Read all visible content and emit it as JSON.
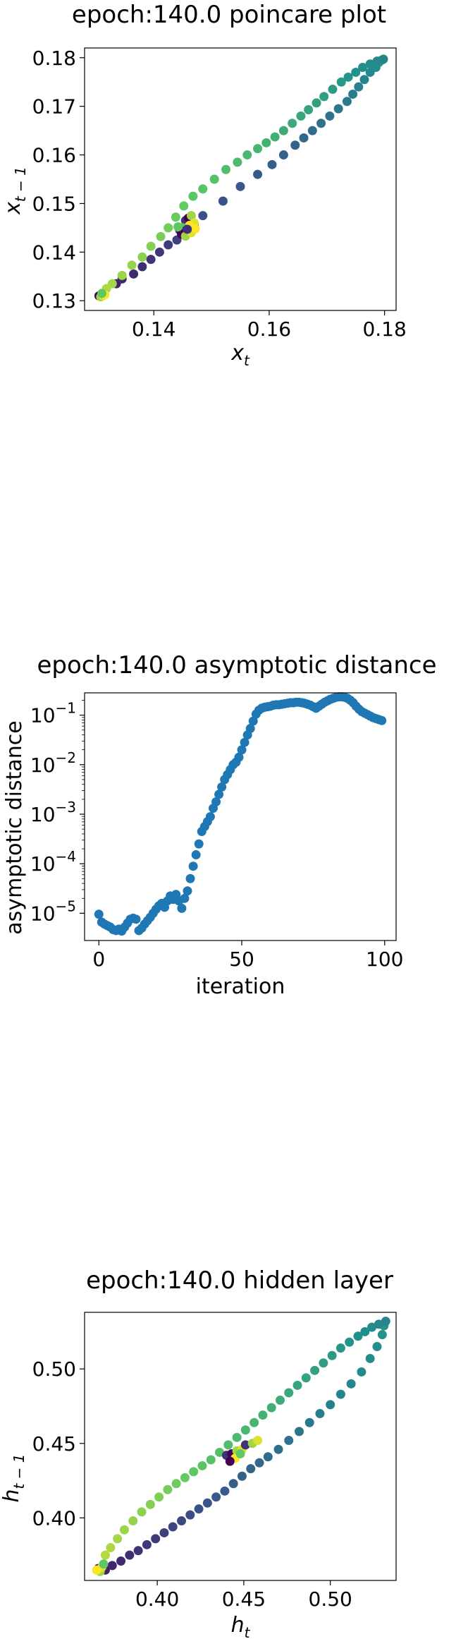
{
  "colors": {
    "scatter_blue": "#1f77b4",
    "frame": "#000000"
  },
  "chart_data": [
    {
      "type": "scatter",
      "title": "epoch:140.0 poincare plot",
      "xlabel": "x_t",
      "ylabel": "x_{t-1}",
      "xlim": [
        0.128,
        0.182
      ],
      "ylim": [
        0.128,
        0.182
      ],
      "xticks": [
        0.14,
        0.16,
        0.18
      ],
      "xtick_labels": [
        "0.14",
        "0.16",
        "0.18"
      ],
      "yticks": [
        0.13,
        0.14,
        0.15,
        0.16,
        0.17,
        0.18
      ],
      "ytick_labels": [
        "0.13",
        "0.14",
        "0.15",
        "0.16",
        "0.17",
        "0.18"
      ],
      "colormap": "viridis",
      "series": [
        {
          "lower_branch": [
            [
              0.1335,
              0.1335
            ],
            [
              0.1345,
              0.1345
            ],
            [
              0.1365,
              0.1355
            ],
            [
              0.138,
              0.137
            ],
            [
              0.1395,
              0.1385
            ],
            [
              0.141,
              0.14
            ],
            [
              0.1425,
              0.1415
            ],
            [
              0.144,
              0.1425
            ],
            [
              0.1455,
              0.1438
            ],
            [
              0.147,
              0.1455
            ],
            [
              0.1485,
              0.1475
            ],
            [
              0.152,
              0.1505
            ],
            [
              0.155,
              0.1535
            ],
            [
              0.158,
              0.156
            ],
            [
              0.1605,
              0.158
            ],
            [
              0.1625,
              0.16
            ],
            [
              0.1645,
              0.162
            ],
            [
              0.166,
              0.1635
            ],
            [
              0.1675,
              0.165
            ],
            [
              0.169,
              0.1665
            ],
            [
              0.1705,
              0.168
            ],
            [
              0.172,
              0.1695
            ],
            [
              0.1735,
              0.171
            ],
            [
              0.1745,
              0.1725
            ],
            [
              0.1755,
              0.174
            ],
            [
              0.1765,
              0.1755
            ],
            [
              0.1775,
              0.177
            ],
            [
              0.1785,
              0.178
            ],
            [
              0.179,
              0.179
            ],
            [
              0.1795,
              0.1795
            ]
          ],
          "upper_branch": [
            [
              0.1798,
              0.1797
            ],
            [
              0.1787,
              0.1793
            ],
            [
              0.1775,
              0.1787
            ],
            [
              0.1762,
              0.178
            ],
            [
              0.175,
              0.177
            ],
            [
              0.1737,
              0.176
            ],
            [
              0.1725,
              0.175
            ],
            [
              0.171,
              0.1735
            ],
            [
              0.1695,
              0.172
            ],
            [
              0.1682,
              0.1707
            ],
            [
              0.1668,
              0.1693
            ],
            [
              0.1655,
              0.168
            ],
            [
              0.164,
              0.1665
            ],
            [
              0.1625,
              0.165
            ],
            [
              0.161,
              0.1637
            ],
            [
              0.1595,
              0.1625
            ],
            [
              0.158,
              0.1613
            ],
            [
              0.1562,
              0.16
            ],
            [
              0.1545,
              0.1585
            ],
            [
              0.1525,
              0.157
            ],
            [
              0.1505,
              0.155
            ],
            [
              0.1485,
              0.153
            ],
            [
              0.1468,
              0.1515
            ],
            [
              0.1452,
              0.1495
            ],
            [
              0.1438,
              0.1472
            ],
            [
              0.1425,
              0.145
            ],
            [
              0.1412,
              0.1432
            ],
            [
              0.1395,
              0.1412
            ],
            [
              0.138,
              0.139
            ],
            [
              0.1362,
              0.1373
            ],
            [
              0.1345,
              0.1352
            ],
            [
              0.1328,
              0.1335
            ],
            [
              0.1318,
              0.1325
            ],
            [
              0.131,
              0.1315
            ]
          ],
          "cluster": [
            [
              0.1305,
              0.131
            ],
            [
              0.1308,
              0.1308
            ],
            [
              0.1312,
              0.131
            ],
            [
              0.1315,
              0.1312
            ],
            [
              0.131,
              0.1315
            ],
            [
              0.1455,
              0.1465
            ],
            [
              0.146,
              0.147
            ],
            [
              0.1465,
              0.1475
            ],
            [
              0.147,
              0.146
            ],
            [
              0.1462,
              0.1455
            ],
            [
              0.145,
              0.145
            ],
            [
              0.1445,
              0.1445
            ],
            [
              0.1448,
              0.1437
            ],
            [
              0.1455,
              0.1433
            ],
            [
              0.1465,
              0.144
            ],
            [
              0.1472,
              0.1448
            ],
            [
              0.1442,
              0.1452
            ],
            [
              0.1458,
              0.1447
            ]
          ]
        }
      ]
    },
    {
      "type": "scatter",
      "title": "epoch:140.0 asymptotic distance",
      "xlabel": "iteration",
      "ylabel": "asymptotic distance",
      "xlim": [
        -5,
        104
      ],
      "ylim_log10": [
        -5.55,
        -0.55
      ],
      "yscale": "log",
      "xticks": [
        0,
        50,
        100
      ],
      "xtick_labels": [
        "0",
        "50",
        "100"
      ],
      "yticks_log10": [
        -5,
        -4,
        -3,
        -2,
        -1
      ],
      "ytick_base": "10",
      "ytick_exponents": [
        "−5",
        "−4",
        "−3",
        "−2",
        "−1"
      ],
      "series": [
        {
          "x": [
            0,
            1,
            2,
            3,
            4,
            5,
            6,
            7,
            8,
            9,
            10,
            11,
            12,
            13,
            14,
            15,
            16,
            17,
            18,
            19,
            20,
            21,
            22,
            23,
            24,
            25,
            26,
            27,
            28,
            29,
            30,
            31,
            32,
            33,
            34,
            35,
            36,
            37,
            38,
            39,
            40,
            41,
            42,
            43,
            44,
            45,
            46,
            47,
            48,
            49,
            50,
            51,
            52,
            53,
            54,
            55,
            56,
            57,
            58,
            59,
            60,
            61,
            62,
            63,
            64,
            65,
            66,
            67,
            68,
            69,
            70,
            71,
            72,
            73,
            74,
            75,
            76,
            77,
            78,
            79,
            80,
            81,
            82,
            83,
            84,
            85,
            86,
            87,
            88,
            89,
            90,
            91,
            92,
            93,
            94,
            95,
            96,
            97,
            98,
            99
          ],
          "log10_y": [
            -5.02,
            -5.18,
            -5.22,
            -5.25,
            -5.28,
            -5.33,
            -5.35,
            -5.32,
            -5.36,
            -5.28,
            -5.2,
            -5.12,
            -5.1,
            -5.12,
            -5.35,
            -5.3,
            -5.22,
            -5.15,
            -5.08,
            -5.0,
            -4.92,
            -4.85,
            -4.8,
            -4.88,
            -4.75,
            -4.65,
            -4.72,
            -4.62,
            -4.75,
            -4.9,
            -4.7,
            -4.55,
            -4.3,
            -4.05,
            -3.82,
            -3.6,
            -3.35,
            -3.25,
            -3.15,
            -3.05,
            -2.88,
            -2.75,
            -2.6,
            -2.45,
            -2.3,
            -2.2,
            -2.1,
            -2.0,
            -1.95,
            -1.85,
            -1.7,
            -1.55,
            -1.4,
            -1.27,
            -1.12,
            -0.98,
            -0.9,
            -0.86,
            -0.84,
            -0.83,
            -0.82,
            -0.8,
            -0.79,
            -0.79,
            -0.78,
            -0.77,
            -0.76,
            -0.75,
            -0.75,
            -0.74,
            -0.74,
            -0.75,
            -0.76,
            -0.78,
            -0.8,
            -0.83,
            -0.86,
            -0.82,
            -0.78,
            -0.74,
            -0.71,
            -0.68,
            -0.66,
            -0.64,
            -0.63,
            -0.63,
            -0.64,
            -0.66,
            -0.7,
            -0.75,
            -0.82,
            -0.88,
            -0.93,
            -0.96,
            -0.99,
            -1.02,
            -1.05,
            -1.07,
            -1.09,
            -1.11
          ]
        }
      ]
    },
    {
      "type": "scatter",
      "title": "epoch:140.0 hidden layer",
      "xlabel": "h_t",
      "ylabel": "h_{t-1}",
      "xlim": [
        0.358,
        0.538
      ],
      "ylim": [
        0.358,
        0.538
      ],
      "xticks": [
        0.4,
        0.45,
        0.5
      ],
      "xtick_labels": [
        "0.40",
        "0.45",
        "0.50"
      ],
      "yticks": [
        0.4,
        0.45,
        0.5
      ],
      "ytick_labels": [
        "0.40",
        "0.45",
        "0.50"
      ],
      "colormap": "viridis",
      "series": [
        {
          "lower_branch": [
            [
              0.37,
              0.365
            ],
            [
              0.374,
              0.368
            ],
            [
              0.379,
              0.371
            ],
            [
              0.384,
              0.375
            ],
            [
              0.389,
              0.378
            ],
            [
              0.394,
              0.382
            ],
            [
              0.399,
              0.386
            ],
            [
              0.404,
              0.39
            ],
            [
              0.409,
              0.394
            ],
            [
              0.414,
              0.398
            ],
            [
              0.419,
              0.402
            ],
            [
              0.424,
              0.406
            ],
            [
              0.429,
              0.41
            ],
            [
              0.434,
              0.414
            ],
            [
              0.439,
              0.418
            ],
            [
              0.444,
              0.423
            ],
            [
              0.449,
              0.428
            ],
            [
              0.454,
              0.433
            ],
            [
              0.459,
              0.437
            ],
            [
              0.464,
              0.441
            ],
            [
              0.47,
              0.446
            ],
            [
              0.476,
              0.452
            ],
            [
              0.482,
              0.458
            ],
            [
              0.488,
              0.464
            ],
            [
              0.494,
              0.47
            ],
            [
              0.5,
              0.476
            ],
            [
              0.506,
              0.483
            ],
            [
              0.512,
              0.49
            ],
            [
              0.518,
              0.498
            ],
            [
              0.523,
              0.507
            ],
            [
              0.527,
              0.515
            ],
            [
              0.53,
              0.523
            ],
            [
              0.531,
              0.529
            ]
          ],
          "upper_branch": [
            [
              0.532,
              0.532
            ],
            [
              0.528,
              0.53
            ],
            [
              0.524,
              0.528
            ],
            [
              0.52,
              0.525
            ],
            [
              0.516,
              0.522
            ],
            [
              0.511,
              0.518
            ],
            [
              0.506,
              0.514
            ],
            [
              0.501,
              0.509
            ],
            [
              0.496,
              0.504
            ],
            [
              0.491,
              0.499
            ],
            [
              0.486,
              0.494
            ],
            [
              0.481,
              0.489
            ],
            [
              0.476,
              0.484
            ],
            [
              0.471,
              0.479
            ],
            [
              0.466,
              0.474
            ],
            [
              0.461,
              0.469
            ],
            [
              0.456,
              0.464
            ],
            [
              0.451,
              0.459
            ],
            [
              0.446,
              0.454
            ],
            [
              0.441,
              0.449
            ],
            [
              0.436,
              0.444
            ],
            [
              0.431,
              0.439
            ],
            [
              0.426,
              0.435
            ],
            [
              0.421,
              0.431
            ],
            [
              0.416,
              0.427
            ],
            [
              0.411,
              0.423
            ],
            [
              0.406,
              0.419
            ],
            [
              0.401,
              0.414
            ],
            [
              0.396,
              0.409
            ],
            [
              0.391,
              0.404
            ],
            [
              0.386,
              0.398
            ],
            [
              0.381,
              0.392
            ],
            [
              0.377,
              0.386
            ],
            [
              0.373,
              0.38
            ],
            [
              0.37,
              0.375
            ]
          ],
          "cluster": [
            [
              0.366,
              0.366
            ],
            [
              0.367,
              0.364
            ],
            [
              0.368,
              0.367
            ],
            [
              0.365,
              0.365
            ],
            [
              0.369,
              0.369
            ],
            [
              0.44,
              0.442
            ],
            [
              0.443,
              0.443
            ],
            [
              0.446,
              0.445
            ],
            [
              0.449,
              0.446
            ],
            [
              0.445,
              0.44
            ],
            [
              0.448,
              0.443
            ],
            [
              0.451,
              0.449
            ],
            [
              0.442,
              0.438
            ],
            [
              0.455,
              0.45
            ],
            [
              0.458,
              0.452
            ]
          ]
        }
      ]
    }
  ]
}
